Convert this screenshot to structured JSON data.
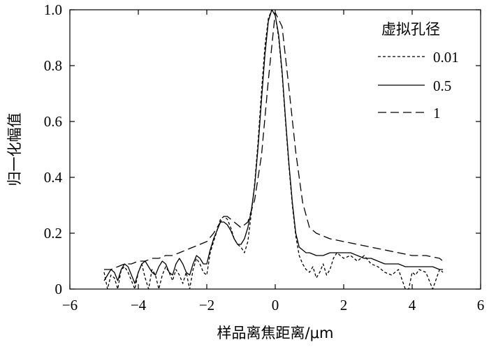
{
  "chart_data": {
    "type": "line",
    "title": "",
    "xlabel": "样品离焦距离/μm",
    "ylabel": "归一化幅值",
    "xlim": [
      -6,
      6
    ],
    "ylim": [
      0,
      1.0
    ],
    "x_ticks": [
      -6,
      -4,
      -2,
      0,
      2,
      4,
      6
    ],
    "x_tick_labels": [
      "−6",
      "−4",
      "−2",
      "0",
      "2",
      "4",
      "6"
    ],
    "y_ticks": [
      0,
      0.2,
      0.4,
      0.6,
      0.8,
      1.0
    ],
    "y_tick_labels": [
      "0",
      "0.2",
      "0.4",
      "0.6",
      "0.8",
      "1.0"
    ],
    "grid": false,
    "legend": {
      "title": "虚拟孔径",
      "placement": "top-right"
    },
    "series": [
      {
        "name": "0.01",
        "style": "dotted",
        "x": [
          -5.0,
          -4.9,
          -4.8,
          -4.7,
          -4.6,
          -4.5,
          -4.4,
          -4.3,
          -4.2,
          -4.1,
          -4.0,
          -3.9,
          -3.8,
          -3.7,
          -3.6,
          -3.5,
          -3.4,
          -3.3,
          -3.2,
          -3.1,
          -3.0,
          -2.9,
          -2.8,
          -2.7,
          -2.6,
          -2.5,
          -2.4,
          -2.3,
          -2.2,
          -2.1,
          -2.0,
          -1.9,
          -1.8,
          -1.7,
          -1.6,
          -1.5,
          -1.4,
          -1.3,
          -1.2,
          -1.1,
          -1.0,
          -0.9,
          -0.8,
          -0.7,
          -0.6,
          -0.5,
          -0.4,
          -0.3,
          -0.2,
          -0.1,
          0.0,
          0.1,
          0.2,
          0.3,
          0.4,
          0.5,
          0.6,
          0.7,
          0.8,
          0.9,
          1.0,
          1.1,
          1.2,
          1.3,
          1.4,
          1.5,
          1.6,
          1.7,
          1.8,
          1.9,
          2.0,
          2.2,
          2.4,
          2.6,
          2.8,
          3.0,
          3.2,
          3.4,
          3.6,
          3.8,
          3.9,
          4.0,
          4.1,
          4.2,
          4.4,
          4.6,
          4.8,
          4.9
        ],
        "values": [
          0.06,
          0.0,
          0.05,
          0.04,
          0.0,
          0.07,
          0.08,
          0.06,
          0.03,
          0.0,
          0.06,
          0.09,
          0.04,
          0.0,
          0.07,
          0.05,
          0.0,
          0.05,
          0.08,
          0.06,
          0.03,
          0.07,
          0.05,
          0.02,
          0.06,
          0.0,
          0.07,
          0.11,
          0.09,
          0.06,
          0.05,
          0.13,
          0.17,
          0.21,
          0.25,
          0.26,
          0.25,
          0.22,
          0.18,
          0.16,
          0.15,
          0.13,
          0.17,
          0.27,
          0.38,
          0.53,
          0.71,
          0.87,
          0.97,
          1.0,
          0.98,
          0.9,
          0.77,
          0.6,
          0.44,
          0.3,
          0.19,
          0.12,
          0.09,
          0.07,
          0.06,
          0.08,
          0.04,
          0.06,
          0.09,
          0.05,
          0.07,
          0.11,
          0.13,
          0.12,
          0.11,
          0.12,
          0.1,
          0.12,
          0.09,
          0.08,
          0.06,
          0.05,
          0.07,
          0.0,
          0.0,
          0.06,
          0.05,
          0.07,
          0.06,
          0.0,
          0.07,
          0.06
        ]
      },
      {
        "name": "0.5",
        "style": "solid",
        "x": [
          -5.0,
          -4.9,
          -4.8,
          -4.7,
          -4.6,
          -4.5,
          -4.4,
          -4.3,
          -4.2,
          -4.1,
          -4.0,
          -3.9,
          -3.8,
          -3.7,
          -3.6,
          -3.5,
          -3.4,
          -3.3,
          -3.2,
          -3.1,
          -3.0,
          -2.9,
          -2.8,
          -2.7,
          -2.6,
          -2.5,
          -2.4,
          -2.3,
          -2.2,
          -2.1,
          -2.0,
          -1.9,
          -1.8,
          -1.7,
          -1.6,
          -1.5,
          -1.4,
          -1.3,
          -1.2,
          -1.1,
          -1.0,
          -0.9,
          -0.8,
          -0.7,
          -0.6,
          -0.5,
          -0.4,
          -0.3,
          -0.2,
          -0.1,
          0.0,
          0.1,
          0.2,
          0.3,
          0.4,
          0.5,
          0.6,
          0.7,
          0.8,
          0.9,
          1.0,
          1.2,
          1.4,
          1.6,
          1.8,
          2.0,
          2.2,
          2.4,
          2.6,
          2.8,
          3.0,
          3.2,
          3.4,
          3.6,
          3.8,
          4.0,
          4.2,
          4.4,
          4.6,
          4.8,
          4.9
        ],
        "values": [
          0.03,
          0.05,
          0.07,
          0.06,
          0.03,
          0.07,
          0.09,
          0.08,
          0.05,
          0.02,
          0.06,
          0.09,
          0.1,
          0.08,
          0.06,
          0.05,
          0.08,
          0.1,
          0.09,
          0.06,
          0.05,
          0.09,
          0.11,
          0.09,
          0.06,
          0.05,
          0.09,
          0.12,
          0.11,
          0.09,
          0.09,
          0.14,
          0.18,
          0.21,
          0.24,
          0.24,
          0.23,
          0.21,
          0.18,
          0.16,
          0.16,
          0.18,
          0.22,
          0.28,
          0.37,
          0.51,
          0.68,
          0.84,
          0.96,
          1.0,
          0.98,
          0.91,
          0.78,
          0.61,
          0.45,
          0.31,
          0.2,
          0.15,
          0.14,
          0.13,
          0.13,
          0.12,
          0.12,
          0.13,
          0.13,
          0.13,
          0.13,
          0.12,
          0.11,
          0.11,
          0.1,
          0.09,
          0.09,
          0.09,
          0.08,
          0.08,
          0.08,
          0.08,
          0.08,
          0.07,
          0.07
        ]
      },
      {
        "name": "1",
        "style": "dashed",
        "x": [
          -5.0,
          -4.8,
          -4.6,
          -4.4,
          -4.2,
          -4.0,
          -3.8,
          -3.6,
          -3.4,
          -3.2,
          -3.0,
          -2.8,
          -2.6,
          -2.4,
          -2.2,
          -2.0,
          -1.8,
          -1.6,
          -1.5,
          -1.4,
          -1.2,
          -1.0,
          -0.8,
          -0.6,
          -0.4,
          -0.2,
          0.0,
          0.2,
          0.4,
          0.6,
          0.8,
          1.0,
          1.2,
          1.6,
          2.0,
          2.4,
          2.8,
          3.2,
          3.6,
          4.0,
          4.4,
          4.8,
          4.9
        ],
        "values": [
          0.07,
          0.07,
          0.08,
          0.09,
          0.09,
          0.1,
          0.1,
          0.11,
          0.11,
          0.12,
          0.12,
          0.13,
          0.14,
          0.15,
          0.16,
          0.17,
          0.2,
          0.24,
          0.26,
          0.26,
          0.24,
          0.22,
          0.24,
          0.32,
          0.48,
          0.75,
          0.99,
          0.94,
          0.72,
          0.49,
          0.31,
          0.22,
          0.2,
          0.18,
          0.17,
          0.16,
          0.15,
          0.14,
          0.13,
          0.12,
          0.12,
          0.11,
          0.1
        ]
      }
    ]
  }
}
